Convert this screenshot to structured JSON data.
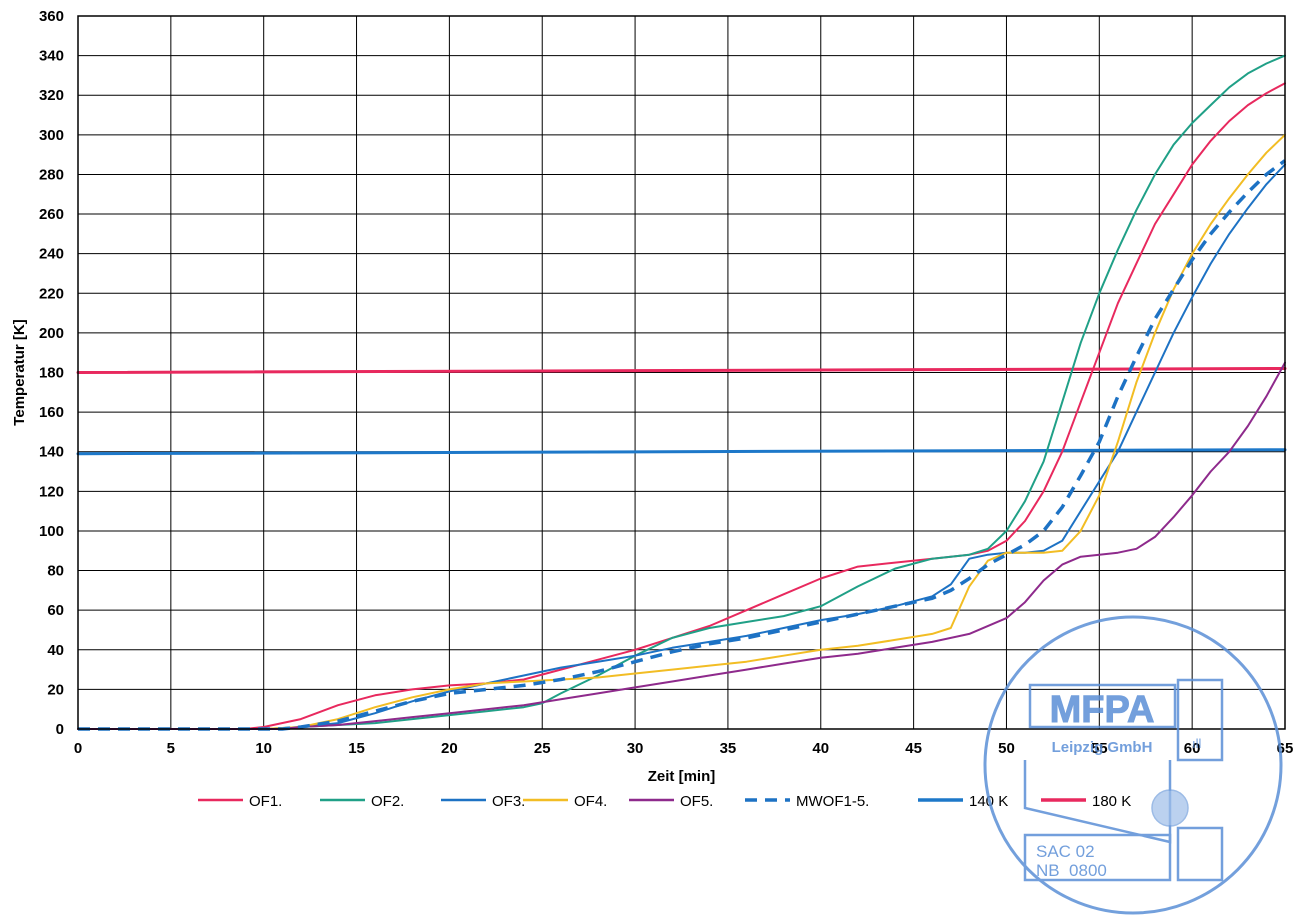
{
  "chart_data": {
    "type": "line",
    "title": "",
    "xlabel": "Zeit [min]",
    "ylabel": "Temperatur [K]",
    "xlim": [
      0,
      65
    ],
    "ylim": [
      0,
      360
    ],
    "x_ticks": [
      0,
      5,
      10,
      15,
      20,
      25,
      30,
      35,
      40,
      45,
      50,
      55,
      60,
      65
    ],
    "y_ticks": [
      0,
      20,
      40,
      60,
      80,
      100,
      120,
      140,
      160,
      180,
      200,
      220,
      240,
      260,
      280,
      300,
      320,
      340,
      360
    ],
    "grid": true,
    "legend_position": "bottom",
    "series": [
      {
        "name": "OF1.",
        "color": "#e8295e",
        "dash": false,
        "width": 2,
        "x": [
          0,
          9,
          10,
          12,
          14,
          16,
          18,
          20,
          22,
          24,
          26,
          28,
          30,
          32,
          34,
          36,
          38,
          40,
          42,
          44,
          46,
          47,
          48,
          49,
          50,
          51,
          52,
          53,
          54,
          55,
          56,
          57,
          58,
          59,
          60,
          61,
          62,
          63,
          64,
          65
        ],
        "y": [
          0,
          0,
          1,
          5,
          12,
          17,
          20,
          22,
          23,
          25,
          30,
          35,
          40,
          46,
          52,
          60,
          68,
          76,
          82,
          84,
          86,
          87,
          88,
          90,
          95,
          105,
          120,
          140,
          165,
          190,
          215,
          235,
          255,
          270,
          285,
          297,
          307,
          315,
          321,
          326
        ]
      },
      {
        "name": "OF2.",
        "color": "#20a087",
        "dash": false,
        "width": 2,
        "x": [
          0,
          10,
          12,
          14,
          16,
          18,
          20,
          22,
          24,
          25,
          26,
          28,
          30,
          32,
          34,
          36,
          38,
          40,
          42,
          44,
          46,
          47,
          48,
          49,
          50,
          51,
          52,
          53,
          54,
          55,
          56,
          57,
          58,
          59,
          60,
          61,
          62,
          63,
          64,
          65
        ],
        "y": [
          0,
          0,
          1,
          2,
          3,
          5,
          7,
          9,
          11,
          13,
          18,
          27,
          37,
          46,
          51,
          54,
          57,
          62,
          72,
          81,
          86,
          87,
          88,
          91,
          100,
          115,
          135,
          165,
          195,
          220,
          242,
          262,
          280,
          295,
          306,
          315,
          324,
          331,
          336,
          340
        ]
      },
      {
        "name": "OF3.",
        "color": "#1d72c4",
        "dash": false,
        "width": 2,
        "x": [
          0,
          11,
          12,
          14,
          16,
          18,
          20,
          22,
          24,
          26,
          28,
          30,
          32,
          34,
          36,
          38,
          40,
          42,
          44,
          46,
          47,
          48,
          49,
          50,
          51,
          52,
          53,
          54,
          55,
          56,
          57,
          58,
          59,
          60,
          61,
          62,
          63,
          64,
          65
        ],
        "y": [
          0,
          0,
          1,
          3,
          8,
          14,
          19,
          23,
          27,
          31,
          34,
          37,
          41,
          44,
          47,
          51,
          55,
          58,
          62,
          67,
          73,
          86,
          88,
          89,
          89,
          90,
          95,
          110,
          125,
          140,
          160,
          180,
          200,
          218,
          235,
          250,
          263,
          275,
          285
        ]
      },
      {
        "name": "OF4.",
        "color": "#f2bd24",
        "dash": false,
        "width": 2,
        "x": [
          0,
          10,
          12,
          14,
          16,
          18,
          20,
          22,
          24,
          26,
          28,
          30,
          32,
          34,
          36,
          38,
          40,
          42,
          44,
          46,
          47,
          48,
          49,
          50,
          51,
          52,
          53,
          54,
          55,
          56,
          57,
          58,
          59,
          60,
          61,
          62,
          63,
          64,
          65
        ],
        "y": [
          0,
          0,
          1,
          5,
          11,
          16,
          20,
          23,
          24,
          25,
          26,
          28,
          30,
          32,
          34,
          37,
          40,
          42,
          45,
          48,
          51,
          72,
          85,
          89,
          89,
          89,
          90,
          100,
          118,
          145,
          175,
          200,
          222,
          240,
          255,
          268,
          280,
          291,
          300
        ]
      },
      {
        "name": "OF5.",
        "color": "#8e2a8c",
        "dash": false,
        "width": 2,
        "x": [
          0,
          11,
          12,
          14,
          16,
          18,
          20,
          22,
          24,
          26,
          28,
          30,
          32,
          34,
          36,
          38,
          40,
          42,
          44,
          46,
          48,
          50,
          51,
          52,
          53,
          54,
          55,
          56,
          57,
          58,
          59,
          60,
          61,
          62,
          63,
          64,
          65
        ],
        "y": [
          0,
          0,
          1,
          2,
          4,
          6,
          8,
          10,
          12,
          15,
          18,
          21,
          24,
          27,
          30,
          33,
          36,
          38,
          41,
          44,
          48,
          56,
          64,
          75,
          83,
          87,
          88,
          89,
          91,
          97,
          107,
          118,
          130,
          140,
          153,
          168,
          185
        ]
      },
      {
        "name": "MWOF1-5.",
        "color": "#1d72c4",
        "dash": true,
        "width": 3.5,
        "x": [
          0,
          11,
          12,
          14,
          16,
          18,
          20,
          22,
          24,
          26,
          28,
          30,
          32,
          34,
          36,
          38,
          40,
          42,
          44,
          46,
          47,
          48,
          49,
          50,
          51,
          52,
          53,
          54,
          55,
          56,
          57,
          58,
          59,
          60,
          61,
          62,
          63,
          64,
          65
        ],
        "y": [
          0,
          0,
          1,
          4,
          9,
          14,
          18,
          20,
          22,
          25,
          29,
          34,
          39,
          43,
          46,
          50,
          54,
          58,
          62,
          66,
          70,
          76,
          83,
          88,
          93,
          100,
          112,
          128,
          145,
          168,
          188,
          207,
          222,
          237,
          250,
          261,
          271,
          280,
          287
        ]
      },
      {
        "name": "140 K",
        "color": "#1d78c9",
        "dash": false,
        "width": 3,
        "x": [
          0,
          65
        ],
        "y": [
          139,
          141
        ]
      },
      {
        "name": "180 K",
        "color": "#e8295e",
        "dash": false,
        "width": 3,
        "x": [
          0,
          65
        ],
        "y": [
          180,
          182
        ]
      }
    ]
  },
  "stamp": {
    "line1": "MFPA",
    "line2": "Leipzig GmbH",
    "line3": "SAC 02",
    "line4": "NB  0800",
    "color": "#5b8fd6"
  }
}
